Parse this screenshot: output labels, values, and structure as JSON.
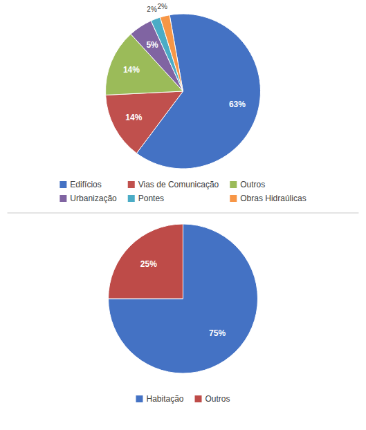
{
  "chart_data": [
    {
      "type": "pie",
      "categories": [
        "Edifícios",
        "Vias de Comunicação",
        "Outros",
        "Urbanização",
        "Pontes",
        "Obras Hidraúlicas"
      ],
      "values": [
        63,
        14,
        14,
        5,
        2,
        2
      ],
      "value_labels": [
        "63%",
        "14%",
        "14%",
        "5%",
        "2%",
        "2%"
      ],
      "colors": [
        "#4472C4",
        "#C0504D",
        "#9BBB59",
        "#8064A2",
        "#4BACC6",
        "#F79646"
      ],
      "data_labels": true,
      "legend": "bottom"
    },
    {
      "type": "pie",
      "categories": [
        "Habitação",
        "Outros"
      ],
      "values": [
        75,
        25
      ],
      "value_labels": [
        "75%",
        "25%"
      ],
      "colors": [
        "#4472C4",
        "#BE4B48"
      ],
      "data_labels": true,
      "legend": "bottom"
    }
  ]
}
